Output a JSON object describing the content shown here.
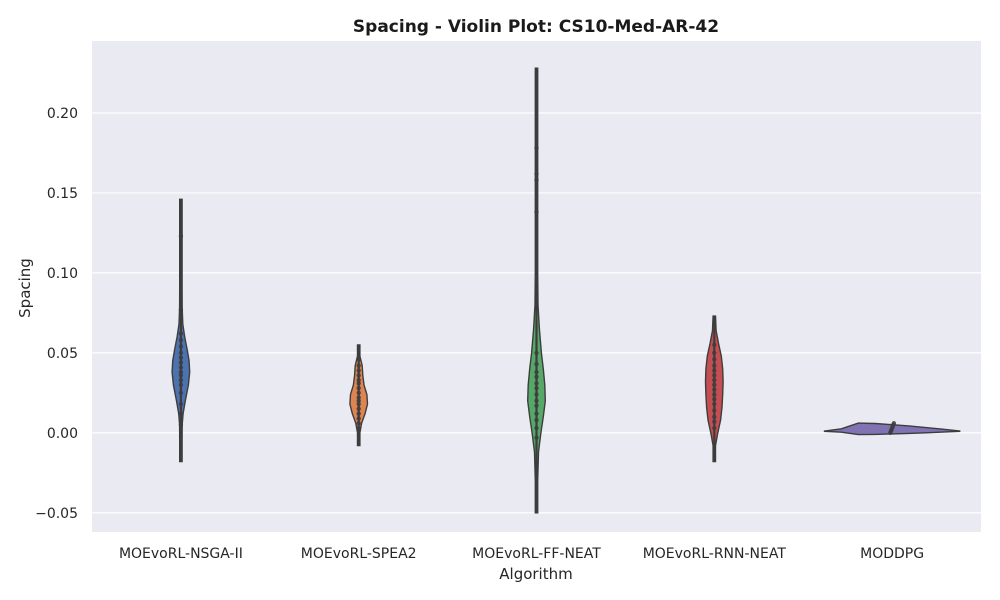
{
  "chart_data": {
    "type": "violin",
    "title": "Spacing - Violin Plot: CS10-Med-AR-42",
    "xlabel": "Algorithm",
    "ylabel": "Spacing",
    "ylim": [
      -0.062,
      0.245
    ],
    "yticks": [
      -0.05,
      0.0,
      0.05,
      0.1,
      0.15,
      0.2
    ],
    "ytick_labels": [
      "−0.05",
      "0.00",
      "0.05",
      "0.10",
      "0.15",
      "0.20"
    ],
    "grid": true,
    "categories": [
      "MOEvoRL-NSGA-II",
      "MOEvoRL-SPEA2",
      "MOEvoRL-FF-NEAT",
      "MOEvoRL-RNN-NEAT",
      "MODDPG"
    ],
    "series": [
      {
        "category": "MOEvoRL-NSGA-II",
        "color": "#4c72b0",
        "min": -0.018,
        "max": 0.146,
        "density": [
          [
            -0.018,
            0.002
          ],
          [
            -0.005,
            0.008
          ],
          [
            0.005,
            0.02
          ],
          [
            0.012,
            0.035
          ],
          [
            0.02,
            0.07
          ],
          [
            0.03,
            0.12
          ],
          [
            0.038,
            0.14
          ],
          [
            0.045,
            0.13
          ],
          [
            0.052,
            0.1
          ],
          [
            0.06,
            0.06
          ],
          [
            0.068,
            0.03
          ],
          [
            0.078,
            0.02
          ],
          [
            0.09,
            0.01
          ],
          [
            0.11,
            0.008
          ],
          [
            0.125,
            0.006
          ],
          [
            0.146,
            0.002
          ]
        ],
        "points": [
          0.005,
          0.008,
          0.012,
          0.018,
          0.025,
          0.03,
          0.033,
          0.036,
          0.038,
          0.041,
          0.044,
          0.047,
          0.05,
          0.054,
          0.058,
          0.062,
          0.077,
          0.123
        ]
      },
      {
        "category": "MOEvoRL-SPEA2",
        "color": "#dd8452",
        "min": -0.008,
        "max": 0.055,
        "density": [
          [
            -0.008,
            0.003
          ],
          [
            0.0,
            0.015
          ],
          [
            0.006,
            0.05
          ],
          [
            0.012,
            0.11
          ],
          [
            0.018,
            0.15
          ],
          [
            0.024,
            0.14
          ],
          [
            0.03,
            0.09
          ],
          [
            0.036,
            0.07
          ],
          [
            0.042,
            0.06
          ],
          [
            0.048,
            0.02
          ],
          [
            0.055,
            0.003
          ]
        ],
        "points": [
          0.003,
          0.006,
          0.009,
          0.012,
          0.015,
          0.018,
          0.02,
          0.022,
          0.025,
          0.028,
          0.031,
          0.033,
          0.036,
          0.039,
          0.042,
          0.046
        ]
      },
      {
        "category": "MOEvoRL-FF-NEAT",
        "color": "#55a868",
        "min": -0.05,
        "max": 0.228,
        "density": [
          [
            -0.05,
            0.002
          ],
          [
            -0.03,
            0.006
          ],
          [
            -0.012,
            0.02
          ],
          [
            0.0,
            0.045
          ],
          [
            0.01,
            0.07
          ],
          [
            0.02,
            0.09
          ],
          [
            0.03,
            0.085
          ],
          [
            0.04,
            0.07
          ],
          [
            0.05,
            0.05
          ],
          [
            0.065,
            0.03
          ],
          [
            0.08,
            0.015
          ],
          [
            0.1,
            0.008
          ],
          [
            0.13,
            0.006
          ],
          [
            0.16,
            0.005
          ],
          [
            0.19,
            0.003
          ],
          [
            0.228,
            0.002
          ]
        ],
        "points": [
          -0.003,
          0.003,
          0.008,
          0.012,
          0.017,
          0.02,
          0.024,
          0.028,
          0.031,
          0.035,
          0.038,
          0.043,
          0.05,
          0.138,
          0.158,
          0.162,
          0.178
        ]
      },
      {
        "category": "MOEvoRL-RNN-NEAT",
        "color": "#c44e52",
        "min": -0.018,
        "max": 0.073,
        "density": [
          [
            -0.018,
            0.003
          ],
          [
            -0.008,
            0.015
          ],
          [
            0.0,
            0.05
          ],
          [
            0.008,
            0.09
          ],
          [
            0.016,
            0.11
          ],
          [
            0.024,
            0.12
          ],
          [
            0.032,
            0.125
          ],
          [
            0.04,
            0.12
          ],
          [
            0.048,
            0.1
          ],
          [
            0.056,
            0.06
          ],
          [
            0.064,
            0.025
          ],
          [
            0.073,
            0.003
          ]
        ],
        "points": [
          0.003,
          0.007,
          0.01,
          0.014,
          0.018,
          0.021,
          0.024,
          0.027,
          0.03,
          0.033,
          0.036,
          0.039,
          0.042,
          0.046,
          0.05,
          0.055
        ]
      },
      {
        "category": "MODDPG",
        "color": "#8172b3",
        "min": -0.001,
        "max": 0.007,
        "density": [
          [
            -0.001,
            0.02
          ],
          [
            0.0,
            0.3
          ],
          [
            0.001,
            1.0
          ],
          [
            0.002,
            0.95
          ],
          [
            0.003,
            0.8
          ],
          [
            0.004,
            0.65
          ],
          [
            0.005,
            0.45
          ],
          [
            0.006,
            0.25
          ],
          [
            0.007,
            0.03
          ]
        ],
        "points": [
          0.0,
          0.001,
          0.002,
          0.003,
          0.004,
          0.005,
          0.006
        ]
      }
    ]
  }
}
